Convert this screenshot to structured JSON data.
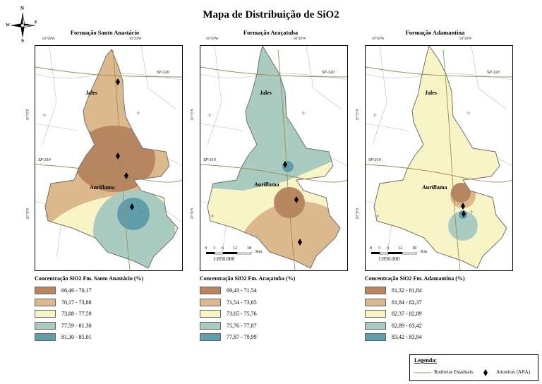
{
  "title": "Mapa de Distribuição de SiO2",
  "compass": {
    "n": "N",
    "s": "S",
    "e": "E",
    "w": "W"
  },
  "colors": {
    "c1": "#b88561",
    "c2": "#dcb88d",
    "c3": "#f8f4c6",
    "c4": "#a9cbc0",
    "c5": "#5f9eaa"
  },
  "panels": [
    {
      "title": "Formação Santo Anastácio",
      "legend_title": "Concentração SiO2 Fm. Santo Anastácio (%)",
      "classes": [
        "66,46 - 70,17",
        "70,17 - 73,88",
        "73,88 - 77,59",
        "77,59 - 81,30",
        "81,30 - 85,01"
      ],
      "has_scale": false
    },
    {
      "title": "Formação Araçatuba",
      "legend_title": "Concentração SiO2 Fm. Araçatuba (%)",
      "classes": [
        "69,43 - 71,54",
        "71,54 - 73,65",
        "73,65 - 75,76",
        "75,76 - 77,87",
        "77,87 - 79,99"
      ],
      "has_scale": true
    },
    {
      "title": "Formação Adamantina",
      "legend_title": "Concentração SiO2 Fm. Adamantina (%)",
      "classes": [
        "81,32 - 81,84",
        "81,84 - 82,37",
        "82,37 - 82,89",
        "82,89 - 83,42",
        "83,42 - 83,94"
      ],
      "has_scale": true
    }
  ],
  "map_labels": {
    "jales": "Jales",
    "auriflama": "Auriflama",
    "sp320": "SP-320",
    "sp310": "SP-310",
    "coord_top_left": "50°50'W",
    "coord_top_right": "50°20'W",
    "coord_left_top": "20°15'S",
    "coord_left_bottom": "20°30'S"
  },
  "scale": {
    "ticks": [
      "0",
      "3",
      "6",
      "12",
      "18"
    ],
    "unit": "Km",
    "ratio": "1:850.000"
  },
  "main_legend": {
    "title": "Legenda:",
    "road": "Rodovias Estaduais",
    "sample": "Amostras (ARA)"
  }
}
